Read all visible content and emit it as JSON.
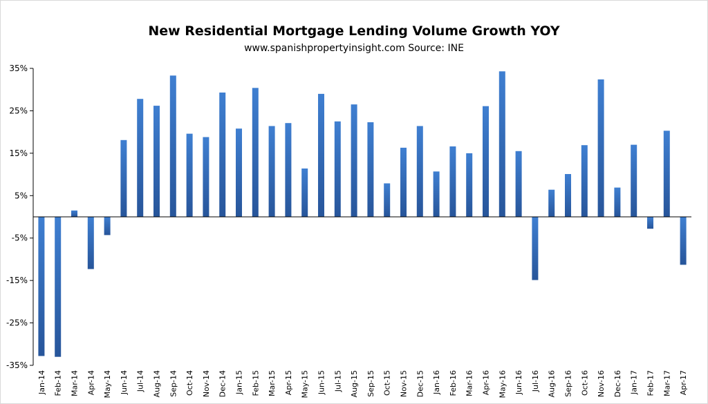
{
  "chart_data": {
    "type": "bar",
    "title": "New Residential Mortgage Lending Volume Growth YOY",
    "subtitle": "www.spanishpropertyinsight.com Source: INE",
    "xlabel": "",
    "ylabel": "",
    "ylim": [
      -35,
      35
    ],
    "y_ticks": [
      "35%",
      "25%",
      "15%",
      "5%",
      "-5%",
      "-15%",
      "-25%",
      "-35%"
    ],
    "y_tick_values": [
      35,
      25,
      15,
      5,
      -5,
      -15,
      -25,
      -35
    ],
    "grid": false,
    "legend": "none",
    "bar_color": "#3f7fd1",
    "bar_color_dark": "#27559a",
    "categories": [
      "Jan-14",
      "Feb-14",
      "Mar-14",
      "Apr-14",
      "May-14",
      "Jun-14",
      "Jul-14",
      "Aug-14",
      "Sep-14",
      "Oct-14",
      "Nov-14",
      "Dec-14",
      "Jan-15",
      "Feb-15",
      "Mar-15",
      "Apr-15",
      "May-15",
      "Jun-15",
      "Jul-15",
      "Aug-15",
      "Sep-15",
      "Oct-15",
      "Nov-15",
      "Dec-15",
      "Jan-16",
      "Feb-16",
      "Mar-16",
      "Apr-16",
      "May-16",
      "Jun-16",
      "Jul-16",
      "Aug-16",
      "Sep-16",
      "Oct-16",
      "Nov-16",
      "Dec-16",
      "Jan-17",
      "Feb-17",
      "Mar-17",
      "Apr-17"
    ],
    "values": [
      -32.8,
      -33.0,
      1.5,
      -12.3,
      -4.3,
      18.1,
      27.8,
      26.2,
      33.3,
      19.6,
      18.8,
      29.3,
      20.8,
      30.4,
      21.4,
      22.1,
      11.4,
      29.0,
      22.5,
      26.5,
      22.3,
      7.9,
      16.3,
      21.4,
      10.7,
      16.6,
      15.0,
      26.1,
      34.3,
      15.5,
      -14.9,
      6.4,
      10.1,
      16.9,
      32.4,
      6.9,
      17.0,
      -2.8,
      20.3,
      -11.3
    ]
  }
}
